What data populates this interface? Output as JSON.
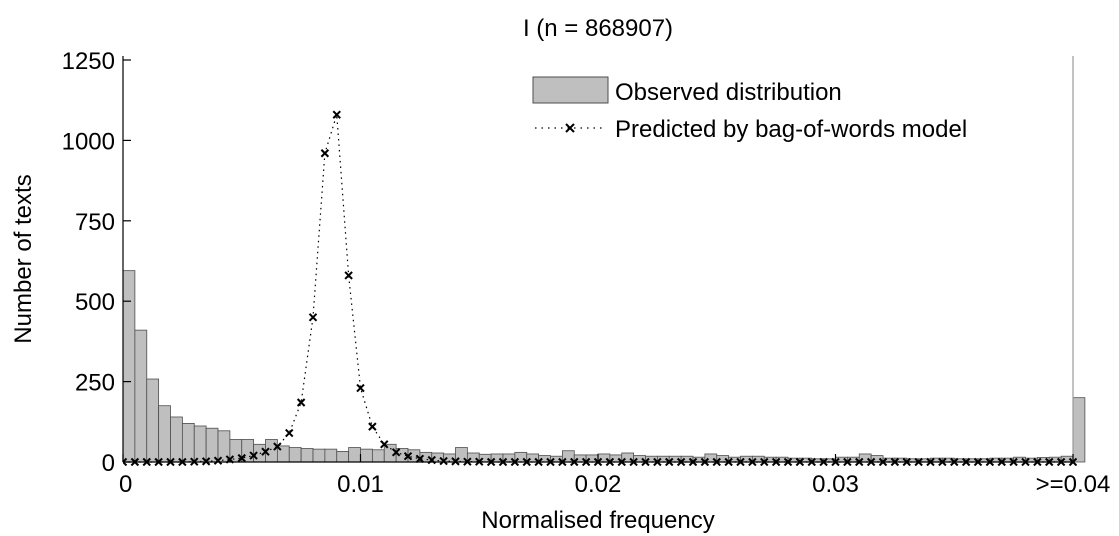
{
  "chart_data": {
    "type": "bar",
    "title": "I (n = 868907)",
    "xlabel": "Normalised frequency",
    "ylabel": "Number of texts",
    "xlim": [
      0,
      0.04
    ],
    "ylim": [
      0,
      1250
    ],
    "xticks": [
      {
        "value": 0,
        "label": "0"
      },
      {
        "value": 0.01,
        "label": "0.01"
      },
      {
        "value": 0.02,
        "label": "0.02"
      },
      {
        "value": 0.03,
        "label": "0.03"
      },
      {
        "value": 0.04,
        "label": ">=0.04"
      }
    ],
    "yticks": [
      {
        "value": 0,
        "label": "0"
      },
      {
        "value": 250,
        "label": "250"
      },
      {
        "value": 500,
        "label": "500"
      },
      {
        "value": 750,
        "label": "750"
      },
      {
        "value": 1000,
        "label": "1000"
      },
      {
        "value": 1250,
        "label": "1250"
      }
    ],
    "grid": false,
    "legend_position": "top-right",
    "colors": {
      "bar_fill": "#bfbfbf",
      "bar_stroke": "#4d4d4d",
      "predicted_line": "#000000"
    },
    "series": [
      {
        "name": "Observed distribution",
        "type": "bar",
        "bin_width": 0.0005,
        "x": [
          0,
          0.0005,
          0.001,
          0.0015,
          0.002,
          0.0025,
          0.003,
          0.0035,
          0.004,
          0.0045,
          0.005,
          0.0055,
          0.006,
          0.0065,
          0.007,
          0.0075,
          0.008,
          0.0085,
          0.009,
          0.0095,
          0.01,
          0.0105,
          0.011,
          0.0115,
          0.012,
          0.0125,
          0.013,
          0.0135,
          0.014,
          0.0145,
          0.015,
          0.0155,
          0.016,
          0.0165,
          0.017,
          0.0175,
          0.018,
          0.0185,
          0.019,
          0.0195,
          0.02,
          0.0205,
          0.021,
          0.0215,
          0.022,
          0.0225,
          0.023,
          0.0235,
          0.024,
          0.0245,
          0.025,
          0.0255,
          0.026,
          0.0265,
          0.027,
          0.0275,
          0.028,
          0.0285,
          0.029,
          0.0295,
          0.03,
          0.0305,
          0.031,
          0.0315,
          0.032,
          0.0325,
          0.033,
          0.0335,
          0.034,
          0.0345,
          0.035,
          0.0355,
          0.036,
          0.0365,
          0.037,
          0.0375,
          0.038,
          0.0385,
          0.039,
          0.0395,
          0.04
        ],
        "values": [
          595,
          410,
          258,
          175,
          140,
          120,
          112,
          105,
          97,
          70,
          70,
          55,
          70,
          50,
          45,
          42,
          40,
          40,
          33,
          45,
          40,
          38,
          55,
          42,
          38,
          30,
          28,
          25,
          45,
          28,
          24,
          25,
          25,
          30,
          25,
          20,
          18,
          35,
          22,
          22,
          25,
          22,
          28,
          20,
          18,
          18,
          18,
          18,
          15,
          25,
          20,
          15,
          18,
          18,
          15,
          15,
          12,
          12,
          10,
          10,
          15,
          15,
          25,
          20,
          12,
          12,
          10,
          10,
          12,
          12,
          10,
          10,
          10,
          12,
          12,
          15,
          12,
          14,
          15,
          18,
          200
        ]
      },
      {
        "name": "Predicted by bag-of-words model",
        "type": "line",
        "x": [
          0,
          0.0005,
          0.001,
          0.0015,
          0.002,
          0.0025,
          0.003,
          0.0035,
          0.004,
          0.0045,
          0.005,
          0.0055,
          0.006,
          0.0065,
          0.007,
          0.0075,
          0.008,
          0.0085,
          0.009,
          0.0095,
          0.01,
          0.0105,
          0.011,
          0.0115,
          0.012,
          0.0125,
          0.013,
          0.0135,
          0.014,
          0.0145,
          0.015,
          0.0155,
          0.016,
          0.0165,
          0.017,
          0.0175,
          0.018,
          0.0185,
          0.019,
          0.0195,
          0.02,
          0.0205,
          0.021,
          0.0215,
          0.022,
          0.0225,
          0.023,
          0.0235,
          0.024,
          0.0245,
          0.025,
          0.0255,
          0.026,
          0.0265,
          0.027,
          0.0275,
          0.028,
          0.0285,
          0.029,
          0.0295,
          0.03,
          0.0305,
          0.031,
          0.0315,
          0.032,
          0.0325,
          0.033,
          0.0335,
          0.034,
          0.0345,
          0.035,
          0.0355,
          0.036,
          0.0365,
          0.037,
          0.0375,
          0.038,
          0.0385,
          0.039,
          0.0395,
          0.04
        ],
        "values": [
          0,
          0,
          0,
          0,
          0,
          0,
          1,
          2,
          4,
          8,
          12,
          20,
          32,
          48,
          90,
          185,
          450,
          960,
          1080,
          580,
          230,
          110,
          55,
          30,
          18,
          10,
          6,
          3,
          2,
          1,
          1,
          0,
          0,
          0,
          0,
          0,
          0,
          0,
          0,
          0,
          0,
          0,
          0,
          0,
          0,
          0,
          0,
          0,
          0,
          0,
          0,
          0,
          0,
          0,
          0,
          0,
          0,
          0,
          0,
          0,
          0,
          0,
          0,
          0,
          0,
          0,
          0,
          0,
          0,
          0,
          0,
          0,
          0,
          0,
          0,
          0,
          0,
          0,
          0,
          0,
          0
        ]
      }
    ]
  }
}
